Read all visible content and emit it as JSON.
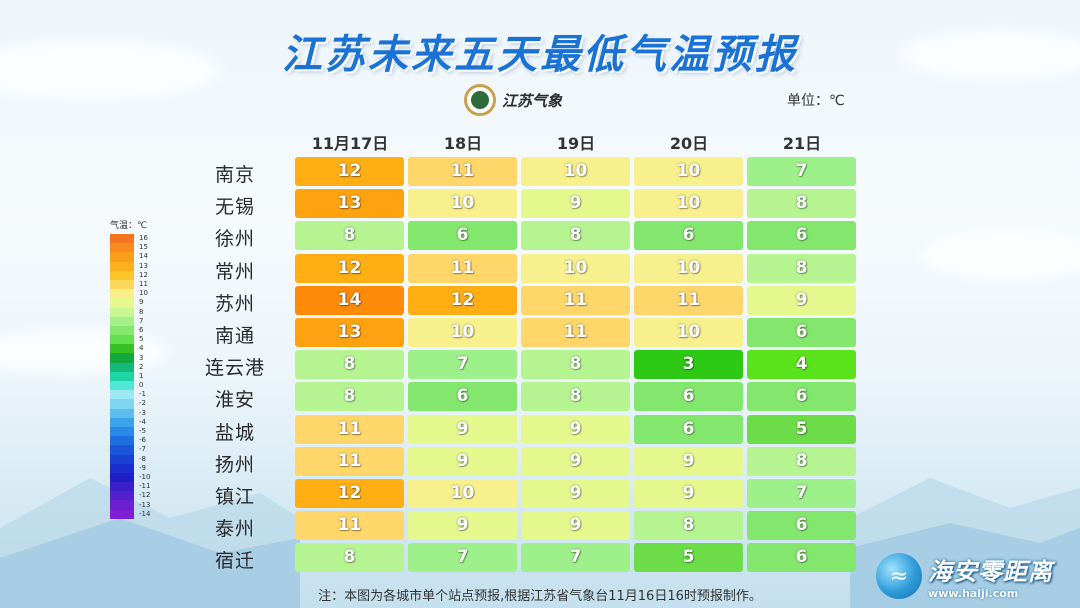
{
  "title": "江苏未来五天最低气温预报",
  "logo": {
    "text": "江苏气象",
    "icon": "emblem-icon"
  },
  "unit": "单位：℃",
  "columns": [
    "11月17日",
    "18日",
    "19日",
    "20日",
    "21日"
  ],
  "cities": [
    "南京",
    "无锡",
    "徐州",
    "常州",
    "苏州",
    "南通",
    "连云港",
    "淮安",
    "盐城",
    "扬州",
    "镇江",
    "泰州",
    "宿迁"
  ],
  "values": [
    [
      12,
      11,
      10,
      10,
      7
    ],
    [
      13,
      10,
      9,
      10,
      8
    ],
    [
      8,
      6,
      8,
      6,
      6
    ],
    [
      12,
      11,
      10,
      10,
      8
    ],
    [
      14,
      12,
      11,
      11,
      9
    ],
    [
      13,
      10,
      11,
      10,
      6
    ],
    [
      8,
      7,
      8,
      3,
      4
    ],
    [
      8,
      6,
      8,
      6,
      6
    ],
    [
      11,
      9,
      9,
      6,
      5
    ],
    [
      11,
      9,
      9,
      9,
      8
    ],
    [
      12,
      10,
      9,
      9,
      7
    ],
    [
      11,
      9,
      9,
      8,
      6
    ],
    [
      8,
      7,
      7,
      5,
      6
    ]
  ],
  "legend": {
    "title": "气温：℃",
    "labels": [
      "16",
      "15",
      "14",
      "13",
      "12",
      "11",
      "10",
      "9",
      "8",
      "7",
      "6",
      "5",
      "4",
      "3",
      "2",
      "1",
      "0",
      "-1",
      "-2",
      "-3",
      "-4",
      "-5",
      "-6",
      "-7",
      "-8",
      "-9",
      "-10",
      "-11",
      "-12",
      "-13",
      "-14"
    ],
    "colors": [
      "#f5761e",
      "#f88a1e",
      "#fa9d1b",
      "#fbb01c",
      "#fcc52a",
      "#fcd75c",
      "#f7ee88",
      "#e6f88e",
      "#c8f792",
      "#a6f08c",
      "#85e86e",
      "#62df52",
      "#34c322",
      "#13a83e",
      "#16b97b",
      "#1fd5a8",
      "#4ee8d4",
      "#9ee8f5",
      "#7fd5f2",
      "#5dbdef",
      "#3aa3ec",
      "#2a8ae7",
      "#1f6fe0",
      "#1a55d9",
      "#1840d2",
      "#1a2ecb",
      "#1d1fc4",
      "#3a1fc9",
      "#541fcc",
      "#6a1fd0",
      "#7e1fd4"
    ]
  },
  "note": "注：本图为各城市单个站点预报,根据江苏省气象台11月16日16时预报制作。",
  "watermark": {
    "name": "海安零距离",
    "url": "www.halji.com"
  }
}
